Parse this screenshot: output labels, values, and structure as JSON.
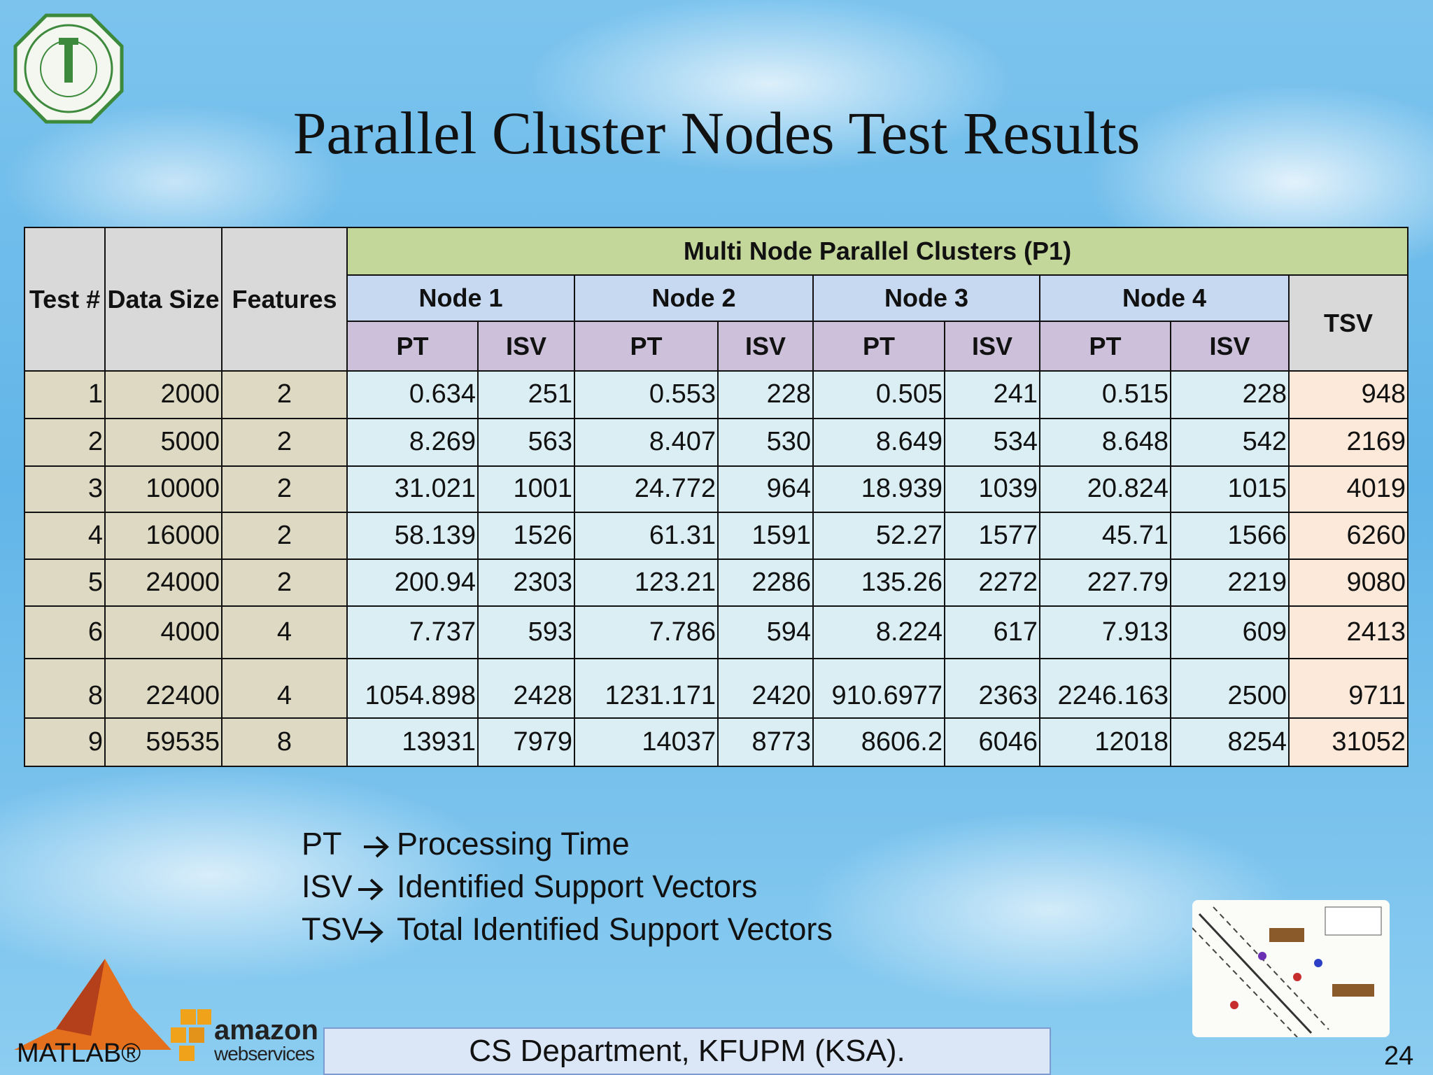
{
  "title": "Parallel Cluster Nodes Test Results",
  "table": {
    "columns": [
      "Test #",
      "Data Size",
      "Features"
    ],
    "group_header": "Multi Node Parallel Clusters (P1)",
    "nodes": [
      "Node 1",
      "Node 2",
      "Node 3",
      "Node 4"
    ],
    "sub_columns": [
      "PT",
      "ISV"
    ],
    "total_column": "TSV",
    "rows": [
      [
        "1",
        "2000",
        "2",
        "0.634",
        "251",
        "0.553",
        "228",
        "0.505",
        "241",
        "0.515",
        "228",
        "948"
      ],
      [
        "2",
        "5000",
        "2",
        "8.269",
        "563",
        "8.407",
        "530",
        "8.649",
        "534",
        "8.648",
        "542",
        "2169"
      ],
      [
        "3",
        "10000",
        "2",
        "31.021",
        "1001",
        "24.772",
        "964",
        "18.939",
        "1039",
        "20.824",
        "1015",
        "4019"
      ],
      [
        "4",
        "16000",
        "2",
        "58.139",
        "1526",
        "61.31",
        "1591",
        "52.27",
        "1577",
        "45.71",
        "1566",
        "6260"
      ],
      [
        "5",
        "24000",
        "2",
        "200.94",
        "2303",
        "123.21",
        "2286",
        "135.26",
        "2272",
        "227.79",
        "2219",
        "9080"
      ],
      [
        "6",
        "4000",
        "4",
        "7.737",
        "593",
        "7.786",
        "594",
        "8.224",
        "617",
        "7.913",
        "609",
        "2413"
      ],
      [
        "8",
        "22400",
        "4",
        "1054.898",
        "2428",
        "1231.171",
        "2420",
        "910.6977",
        "2363",
        "2246.163",
        "2500",
        "9711"
      ],
      [
        "9",
        "59535",
        "8",
        "13931",
        "7979",
        "14037",
        "8773",
        "8606.2",
        "6046",
        "12018",
        "8254",
        "31052"
      ]
    ]
  },
  "legend": [
    {
      "term": "PT",
      "meaning": "Processing Time"
    },
    {
      "term": "ISV",
      "meaning": "Identified Support Vectors"
    },
    {
      "term": "TSV",
      "meaning": "Total Identified Support Vectors"
    }
  ],
  "footer": "CS Department, KFUPM (KSA).",
  "page_number": "24",
  "logos": {
    "matlab": "MATLAB®",
    "amazon": "amazon",
    "aws": "webservices"
  }
}
